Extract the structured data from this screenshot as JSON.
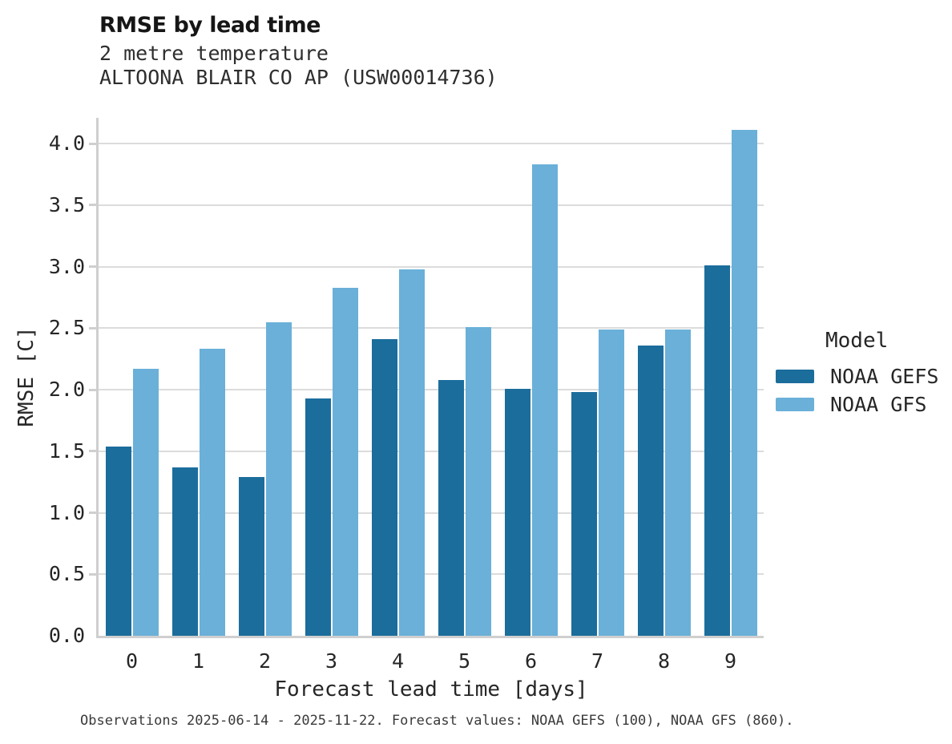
{
  "chart_data": {
    "type": "bar",
    "title": "RMSE by lead time",
    "subtitle": [
      "2 metre temperature",
      "ALTOONA BLAIR CO AP (USW00014736)"
    ],
    "xlabel": "Forecast lead time [days]",
    "ylabel": "RMSE [C]",
    "legend_title": "Model",
    "legend_position": "right",
    "grid": "horizontal",
    "categories": [
      "0",
      "1",
      "2",
      "3",
      "4",
      "5",
      "6",
      "7",
      "8",
      "9"
    ],
    "yticks": [
      "0.0",
      "0.5",
      "1.0",
      "1.5",
      "2.0",
      "2.5",
      "3.0",
      "3.5",
      "4.0"
    ],
    "ylim": [
      0,
      4.21
    ],
    "series": [
      {
        "name": "NOAA GEFS",
        "color": "#1b6d9c",
        "values": [
          1.54,
          1.37,
          1.29,
          1.93,
          2.41,
          2.08,
          2.01,
          1.98,
          2.36,
          3.01
        ]
      },
      {
        "name": "NOAA GFS",
        "color": "#6ab0d9",
        "values": [
          2.17,
          2.33,
          2.55,
          2.83,
          2.98,
          2.51,
          3.83,
          2.49,
          2.49,
          4.11
        ]
      }
    ],
    "caption": "Observations 2025-06-14 - 2025-11-22. Forecast values: NOAA GEFS (100), NOAA GFS (860)."
  },
  "colors": {
    "grid": "#dcdcdc",
    "spine": "#cfcfcf",
    "text": "#262626",
    "title": "#161616"
  }
}
